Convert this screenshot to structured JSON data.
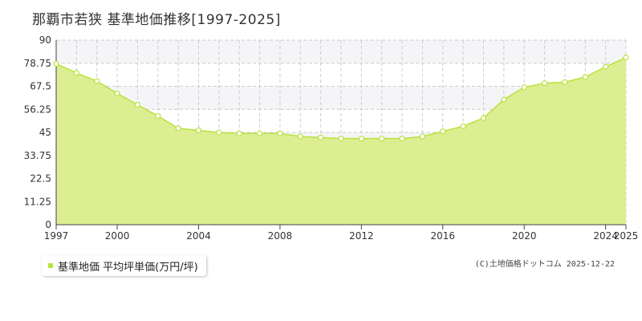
{
  "title": "那覇市若狭 基準地価推移[1997-2025]",
  "legend_label": "基準地価 平均坪単価(万円/坪)",
  "copyright": "(C)土地価格ドットコム 2025-12-22",
  "colors": {
    "fill": "#dcee91",
    "line": "#b9e23f",
    "point_fill": "#ffffff",
    "grid": "#cccccc",
    "band": "#f5f5f7"
  },
  "chart_data": {
    "type": "area",
    "title": "那覇市若狭 基準地価推移[1997-2025]",
    "xlabel": "",
    "ylabel": "",
    "xlim": [
      1997,
      2025
    ],
    "ylim": [
      0,
      90
    ],
    "x_ticks": [
      1997,
      2000,
      2004,
      2008,
      2012,
      2016,
      2020,
      2024,
      2025
    ],
    "y_ticks": [
      "0",
      "11.25",
      "22.5",
      "33.75",
      "45",
      "56.25",
      "67.5",
      "78.75",
      "90"
    ],
    "grid": true,
    "legend": "bottom-left",
    "series": [
      {
        "name": "基準地価 平均坪単価(万円/坪)",
        "x": [
          1997,
          1998,
          1999,
          2000,
          2001,
          2002,
          2003,
          2004,
          2005,
          2006,
          2007,
          2008,
          2009,
          2010,
          2011,
          2012,
          2013,
          2014,
          2015,
          2016,
          2017,
          2018,
          2019,
          2020,
          2021,
          2022,
          2023,
          2024,
          2025
        ],
        "y": [
          78.5,
          74.0,
          70.0,
          64.0,
          58.5,
          53.0,
          47.0,
          46.0,
          45.0,
          44.5,
          44.5,
          44.5,
          43.0,
          42.5,
          42.0,
          42.0,
          42.0,
          42.0,
          43.0,
          45.5,
          48.0,
          52.0,
          61.0,
          67.0,
          69.0,
          69.5,
          72.0,
          77.0,
          81.5
        ]
      }
    ]
  }
}
